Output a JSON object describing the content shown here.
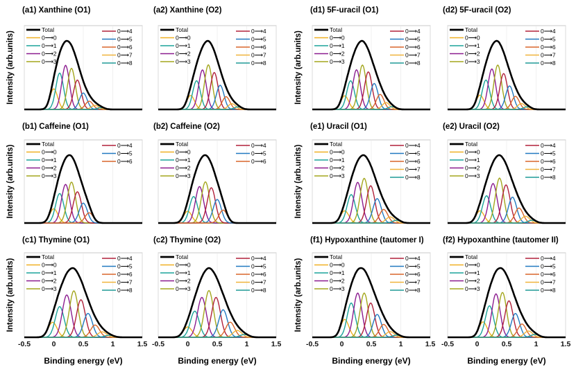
{
  "figure": {
    "ylabel": "Intensity (arb.units)",
    "xlabel": "Binding energy (eV)",
    "legend_total_label": "Total",
    "transitions": [
      "0⟶0",
      "0⟶1",
      "0⟶2",
      "0⟶3",
      "0⟶4",
      "0⟶5",
      "0⟶6",
      "0⟶7",
      "0⟶8"
    ],
    "colors": {
      "total": "#000000",
      "t0": "#f0b022",
      "t1": "#1aa39a",
      "t2": "#8b1b8f",
      "t3": "#a3a61d",
      "t4": "#b0203a",
      "t5": "#2179c0",
      "t6": "#d9652a",
      "t7": "#efb33a",
      "t8": "#1e9a96"
    }
  },
  "chart_data": [
    {
      "panel": "(a1)",
      "title": "(a1) Xanthine (O1)",
      "type": "line",
      "xlim": [
        -0.5,
        1.5
      ],
      "x_ticks": [
        "-0.5",
        "0",
        "0.5",
        "1",
        "1.5"
      ],
      "n_transitions": 9,
      "origin_ev": 0.0,
      "spacing_ev": 0.1,
      "peak_amplitudes": [
        0.35,
        0.62,
        0.75,
        0.7,
        0.5,
        0.28,
        0.14,
        0.07,
        0.03
      ],
      "peak_width_ev": 0.065,
      "legend_entries": [
        "Total",
        "0⟶0",
        "0⟶1",
        "0⟶2",
        "0⟶3",
        "0⟶4",
        "0⟶5",
        "0⟶6",
        "0⟶7",
        "0⟶8"
      ]
    },
    {
      "panel": "(a2)",
      "title": "(a2) Xanthine (O2)",
      "type": "line",
      "xlim": [
        -0.5,
        1.5
      ],
      "x_ticks": [
        "-0.5",
        "0",
        "0.5",
        "1",
        "1.5"
      ],
      "n_transitions": 9,
      "origin_ev": 0.05,
      "spacing_ev": 0.1,
      "peak_amplitudes": [
        0.22,
        0.45,
        0.62,
        0.7,
        0.58,
        0.38,
        0.2,
        0.09,
        0.04
      ],
      "peak_width_ev": 0.065,
      "legend_entries": [
        "Total",
        "0⟶0",
        "0⟶1",
        "0⟶2",
        "0⟶3",
        "0⟶4",
        "0⟶5",
        "0⟶6",
        "0⟶7",
        "0⟶8"
      ]
    },
    {
      "panel": "(b1)",
      "title": "(b1) Caffeine (O1)",
      "type": "line",
      "xlim": [
        -0.5,
        1.5
      ],
      "x_ticks": [
        "-0.5",
        "0",
        "0.5",
        "1",
        "1.5"
      ],
      "n_transitions": 7,
      "origin_ev": 0.0,
      "spacing_ev": 0.1,
      "peak_amplitudes": [
        0.25,
        0.52,
        0.68,
        0.72,
        0.55,
        0.35,
        0.18
      ],
      "peak_width_ev": 0.07,
      "legend_entries": [
        "Total",
        "0⟶0",
        "0⟶1",
        "0⟶2",
        "0⟶3",
        "0⟶4",
        "0⟶5",
        "0⟶6"
      ]
    },
    {
      "panel": "(b2)",
      "title": "(b2) Caffeine (O2)",
      "type": "line",
      "xlim": [
        -0.5,
        1.5
      ],
      "x_ticks": [
        "-0.5",
        "0",
        "0.5",
        "1",
        "1.5"
      ],
      "n_transitions": 7,
      "origin_ev": 0.0,
      "spacing_ev": 0.1,
      "peak_amplitudes": [
        0.2,
        0.45,
        0.62,
        0.7,
        0.6,
        0.4,
        0.22
      ],
      "peak_width_ev": 0.07,
      "legend_entries": [
        "Total",
        "0⟶0",
        "0⟶1",
        "0⟶2",
        "0⟶3",
        "0⟶4",
        "0⟶5",
        "0⟶6"
      ]
    },
    {
      "panel": "(c1)",
      "title": "(c1) Thymine (O1)",
      "type": "line",
      "xlim": [
        -0.5,
        1.5
      ],
      "x_ticks": [
        "-0.5",
        "0",
        "0.5",
        "1",
        "1.5"
      ],
      "n_transitions": 9,
      "origin_ev": -0.02,
      "spacing_ev": 0.12,
      "peak_amplitudes": [
        0.22,
        0.45,
        0.62,
        0.68,
        0.55,
        0.35,
        0.18,
        0.08,
        0.03
      ],
      "peak_width_ev": 0.075,
      "legend_entries": [
        "Total",
        "0⟶0",
        "0⟶1",
        "0⟶2",
        "0⟶3",
        "0⟶4",
        "0⟶5",
        "0⟶6",
        "0⟶7",
        "0⟶8"
      ]
    },
    {
      "panel": "(c2)",
      "title": "(c2) Thymine (O2)",
      "type": "line",
      "xlim": [
        -0.5,
        1.5
      ],
      "x_ticks": [
        "-0.5",
        "0",
        "0.5",
        "1",
        "1.5"
      ],
      "n_transitions": 9,
      "origin_ev": 0.0,
      "spacing_ev": 0.12,
      "peak_amplitudes": [
        0.15,
        0.38,
        0.58,
        0.68,
        0.58,
        0.4,
        0.22,
        0.1,
        0.04
      ],
      "peak_width_ev": 0.075,
      "legend_entries": [
        "Total",
        "0⟶0",
        "0⟶1",
        "0⟶2",
        "0⟶3",
        "0⟶4",
        "0⟶5",
        "0⟶6",
        "0⟶7",
        "0⟶8"
      ]
    },
    {
      "panel": "(d1)",
      "title": "(d1) 5F-uracil (O1)",
      "type": "line",
      "xlim": [
        -0.5,
        1.5
      ],
      "x_ticks": [
        "-0.5",
        "0",
        "0.5",
        "1",
        "1.5"
      ],
      "n_transitions": 9,
      "origin_ev": 0.05,
      "spacing_ev": 0.1,
      "peak_amplitudes": [
        0.2,
        0.42,
        0.58,
        0.65,
        0.55,
        0.38,
        0.22,
        0.1,
        0.04
      ],
      "peak_width_ev": 0.065,
      "legend_entries": [
        "Total",
        "0⟶0",
        "0⟶1",
        "0⟶2",
        "0⟶3",
        "0⟶4",
        "0⟶5",
        "0⟶6",
        "0⟶7",
        "0⟶8"
      ]
    },
    {
      "panel": "(d2)",
      "title": "(d2) 5F-uracil (O2)",
      "type": "line",
      "xlim": [
        -0.5,
        1.5
      ],
      "x_ticks": [
        "-0.5",
        "0",
        "0.5",
        "1",
        "1.5"
      ],
      "n_transitions": 9,
      "origin_ev": 0.05,
      "spacing_ev": 0.1,
      "peak_amplitudes": [
        0.22,
        0.45,
        0.62,
        0.68,
        0.55,
        0.36,
        0.2,
        0.09,
        0.04
      ],
      "peak_width_ev": 0.065,
      "legend_entries": [
        "Total",
        "0⟶0",
        "0⟶1",
        "0⟶2",
        "0⟶3",
        "0⟶4",
        "0⟶5",
        "0⟶6",
        "0⟶7",
        "0⟶8"
      ]
    },
    {
      "panel": "(e1)",
      "title": "(e1) Uracil (O1)",
      "type": "line",
      "xlim": [
        -0.5,
        1.5
      ],
      "x_ticks": [
        "-0.5",
        "0",
        "0.5",
        "1",
        "1.5"
      ],
      "n_transitions": 9,
      "origin_ev": 0.05,
      "spacing_ev": 0.11,
      "peak_amplitudes": [
        0.18,
        0.42,
        0.6,
        0.66,
        0.55,
        0.36,
        0.2,
        0.09,
        0.04
      ],
      "peak_width_ev": 0.07,
      "legend_entries": [
        "Total",
        "0⟶0",
        "0⟶1",
        "0⟶2",
        "0⟶3",
        "0⟶4",
        "0⟶5",
        "0⟶6",
        "0⟶7",
        "0⟶8"
      ]
    },
    {
      "panel": "(e2)",
      "title": "(e2) Uracil (O2)",
      "type": "line",
      "xlim": [
        -0.5,
        1.5
      ],
      "x_ticks": [
        "-0.5",
        "0",
        "0.5",
        "1",
        "1.5"
      ],
      "n_transitions": 9,
      "origin_ev": 0.05,
      "spacing_ev": 0.11,
      "peak_amplitudes": [
        0.18,
        0.4,
        0.58,
        0.66,
        0.56,
        0.38,
        0.22,
        0.1,
        0.04
      ],
      "peak_width_ev": 0.07,
      "legend_entries": [
        "Total",
        "0⟶0",
        "0⟶1",
        "0⟶2",
        "0⟶3",
        "0⟶4",
        "0⟶5",
        "0⟶6",
        "0⟶7",
        "0⟶8"
      ]
    },
    {
      "panel": "(f1)",
      "title": "(f1) Hypoxanthine (tautomer I)",
      "type": "line",
      "xlim": [
        -0.5,
        1.5
      ],
      "x_ticks": [
        "-0.5",
        "0",
        "0.5",
        "1",
        "1.5"
      ],
      "n_transitions": 9,
      "origin_ev": 0.05,
      "spacing_ev": 0.11,
      "peak_amplitudes": [
        0.25,
        0.48,
        0.62,
        0.62,
        0.48,
        0.32,
        0.18,
        0.08,
        0.03
      ],
      "peak_width_ev": 0.07,
      "legend_entries": [
        "Total",
        "0⟶0",
        "0⟶1",
        "0⟶2",
        "0⟶3",
        "0⟶4",
        "0⟶5",
        "0⟶6",
        "0⟶7",
        "0⟶8"
      ]
    },
    {
      "panel": "(f2)",
      "title": "(f2) Hypoxanthine (tautomer II)",
      "type": "line",
      "xlim": [
        -0.5,
        1.5
      ],
      "x_ticks": [
        "-0.5",
        "0",
        "0.5",
        "1",
        "1.5"
      ],
      "n_transitions": 9,
      "origin_ev": 0.1,
      "spacing_ev": 0.11,
      "peak_amplitudes": [
        0.22,
        0.45,
        0.62,
        0.64,
        0.52,
        0.34,
        0.19,
        0.09,
        0.04
      ],
      "peak_width_ev": 0.07,
      "legend_entries": [
        "Total",
        "0⟶0",
        "0⟶1",
        "0⟶2",
        "0⟶3",
        "0⟶4",
        "0⟶5",
        "0⟶6",
        "0⟶7",
        "0⟶8"
      ]
    }
  ]
}
